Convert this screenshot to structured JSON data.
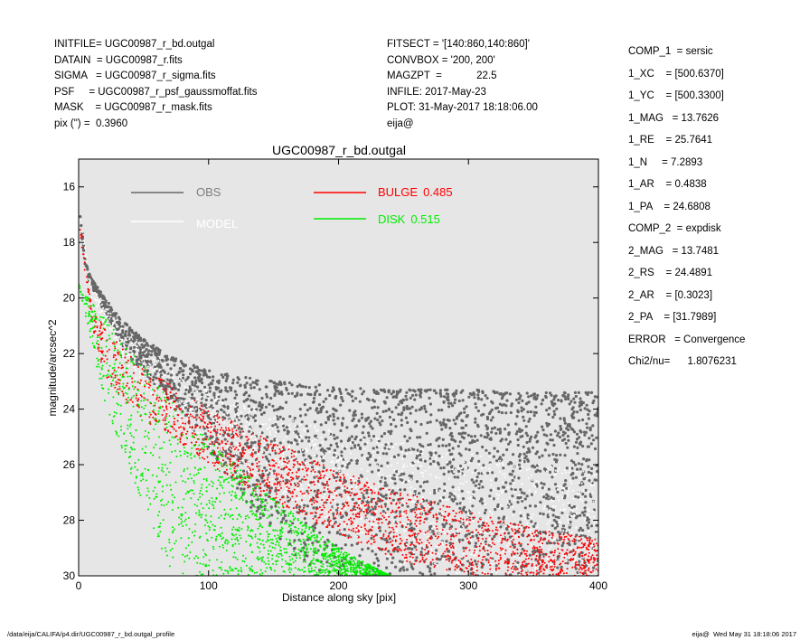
{
  "header_left": [
    "INITFILE= UGC00987_r_bd.outgal",
    "DATAIN  = UGC00987_r.fits",
    "SIGMA   = UGC00987_r_sigma.fits",
    "PSF     = UGC00987_r_psf_gaussmoffat.fits",
    "MASK    = UGC00987_r_mask.fits",
    "pix (\") =  0.3960"
  ],
  "header_mid": [
    "FITSECT = '[140:860,140:860]'",
    "CONVBOX = '200, 200'",
    "MAGZPT  =            22.5",
    "INFILE: 2017-May-23",
    "PLOT: 31-May-2017 18:18:06.00",
    "eija@"
  ],
  "params": {
    "comp1": [
      "COMP_1  = sersic",
      "1_XC    = [500.6370]",
      "1_YC    = [500.3300]",
      "1_MAG   = 13.7626",
      "1_RE    = 25.7641",
      "1_N     = 7.2893",
      "1_AR    = 0.4838",
      "1_PA    = 24.6808"
    ],
    "comp2": [
      "COMP_2  = expdisk",
      "2_MAG   = 13.7481",
      "2_RS    = 24.4891",
      "2_AR    = [0.3023]",
      "2_PA    = [31.7989]"
    ],
    "error": "ERROR   = Convergence",
    "chi2": "Chi2/nu=      1.8076231"
  },
  "footer": {
    "left": "/data/eija/CALIFA/p4.dir/UGC00987_r_bd.outgal_profile",
    "right": "eija@  Wed May 31 18:18:06 2017"
  },
  "chart_data": {
    "type": "scatter",
    "title": "UGC00987_r_bd.outgal",
    "xlabel": "Distance along sky [pix]",
    "ylabel": "magnitude/arcsec^2",
    "xlim": [
      0,
      400
    ],
    "ylim": [
      30,
      15
    ],
    "y_inverted": true,
    "x_ticks": [
      0,
      100,
      200,
      300,
      400
    ],
    "y_ticks": [
      16,
      18,
      20,
      22,
      24,
      26,
      28,
      30
    ],
    "grid": false,
    "legend_position": "top",
    "background": "#e6e6e6",
    "series": [
      {
        "name": "OBS",
        "color": "#666666",
        "legend_value": "",
        "envelope_x": [
          1,
          5,
          10,
          20,
          30,
          40,
          60,
          80,
          100,
          120,
          150,
          180,
          200,
          230,
          260,
          300,
          350,
          400
        ],
        "envelope_y_bright": [
          16.8,
          18.6,
          19.3,
          20.0,
          20.6,
          21.1,
          21.8,
          22.3,
          22.6,
          22.8,
          23.0,
          23.1,
          23.2,
          23.3,
          23.3,
          23.3,
          23.4,
          23.4
        ],
        "envelope_y_faint": [
          17.2,
          18.9,
          19.7,
          20.5,
          21.4,
          22.2,
          23.2,
          24.3,
          25.5,
          26.8,
          28.6,
          30.0,
          30.0,
          30.0,
          30.0,
          30.0,
          30.0,
          30.0
        ]
      },
      {
        "name": "MODEL",
        "color": "#ffffff",
        "legend_value": "",
        "envelope_x": [
          1,
          10,
          20,
          40,
          60,
          80,
          100,
          150,
          200,
          250,
          300,
          350,
          400
        ],
        "envelope_y_bright": [
          17.0,
          19.6,
          20.3,
          21.4,
          22.2,
          22.8,
          23.3,
          24.2,
          24.8,
          25.2,
          25.6,
          25.9,
          26.2
        ],
        "envelope_y_faint": [
          17.2,
          20.0,
          21.0,
          22.7,
          23.8,
          24.6,
          25.3,
          26.9,
          28.3,
          29.7,
          30.0,
          30.0,
          30.0
        ]
      },
      {
        "name": "BULGE",
        "color": "#ff0000",
        "legend_value": "0.485",
        "envelope_x": [
          1,
          10,
          20,
          30,
          50,
          80,
          100,
          150,
          200,
          250,
          300,
          350,
          400
        ],
        "envelope_y_bright": [
          17.3,
          20.3,
          21.0,
          21.6,
          22.5,
          23.4,
          24.0,
          25.2,
          26.2,
          27.0,
          27.7,
          28.3,
          28.7
        ],
        "envelope_y_faint": [
          17.6,
          21.0,
          22.8,
          23.5,
          24.4,
          25.3,
          26.0,
          27.4,
          28.5,
          29.5,
          30.0,
          30.0,
          30.0
        ]
      },
      {
        "name": "DISK",
        "color": "#00ee00",
        "legend_value": "0.515",
        "envelope_x": [
          0,
          20,
          40,
          60,
          73,
          100,
          150,
          200,
          240
        ],
        "envelope_y_bright": [
          19.5,
          20.7,
          21.9,
          23.0,
          23.8,
          25.1,
          27.2,
          29.0,
          30.0
        ],
        "envelope_y_faint": [
          19.5,
          23.8,
          26.3,
          28.6,
          30.0,
          30.0,
          30.0,
          30.0,
          30.0
        ]
      }
    ]
  }
}
